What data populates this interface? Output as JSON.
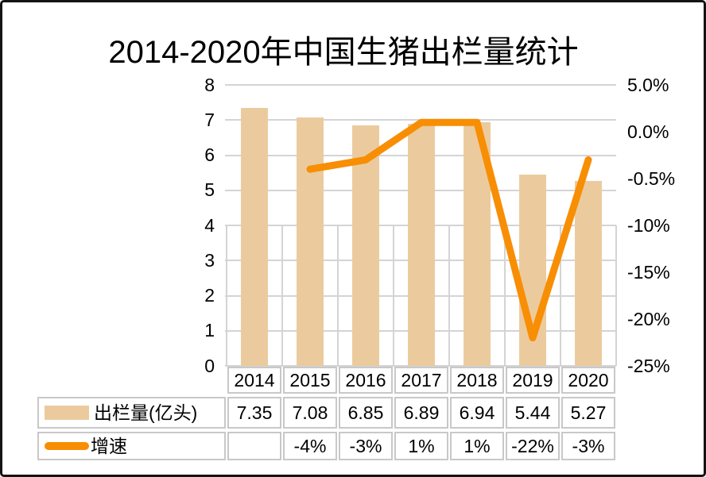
{
  "chart_data": {
    "type": "combo-bar-line",
    "title": "2014-2020年中国生猪出栏量统计",
    "categories": [
      "2014",
      "2015",
      "2016",
      "2017",
      "2018",
      "2019",
      "2020"
    ],
    "series": [
      {
        "name": "出栏量(亿头)",
        "type": "bar",
        "axis": "left",
        "values": [
          7.35,
          7.08,
          6.85,
          6.89,
          6.94,
          5.44,
          5.27
        ]
      },
      {
        "name": "增速",
        "type": "line",
        "axis": "right",
        "unit": "%",
        "values": [
          null,
          -4,
          -3,
          1,
          1,
          -22,
          -3
        ]
      }
    ],
    "left_axis": {
      "min": 0,
      "max": 8,
      "ticks": [
        "8",
        "7",
        "6",
        "5",
        "4",
        "3",
        "2",
        "1",
        "0"
      ]
    },
    "right_axis": {
      "min": -25,
      "max": 5,
      "ticks": [
        "5.0%",
        "0.0%",
        "-0.5%",
        "-10%",
        "-15%",
        "-20%",
        "-25%"
      ]
    },
    "grid": "horizontal-full-plus-vertical-lower-half",
    "legend_position": "table-left"
  },
  "table": {
    "year_row": [
      "2014",
      "2015",
      "2016",
      "2017",
      "2018",
      "2019",
      "2020"
    ],
    "rows": [
      {
        "legend": "出栏量(亿头)",
        "swatch": "bar",
        "cells": [
          "7.35",
          "7.08",
          "6.85",
          "6.89",
          "6.94",
          "5.44",
          "5.27"
        ]
      },
      {
        "legend": "增速",
        "swatch": "line",
        "cells": [
          "",
          "-4%",
          "-3%",
          "1%",
          "1%",
          "-22%",
          "-3%"
        ]
      }
    ]
  },
  "colors": {
    "bar": "#EBCB9E",
    "line": "#F88E04",
    "gridline": "#D4D4D4",
    "table_border": "#C8C8C8",
    "frame_border": "#141414",
    "text": "#000000"
  }
}
